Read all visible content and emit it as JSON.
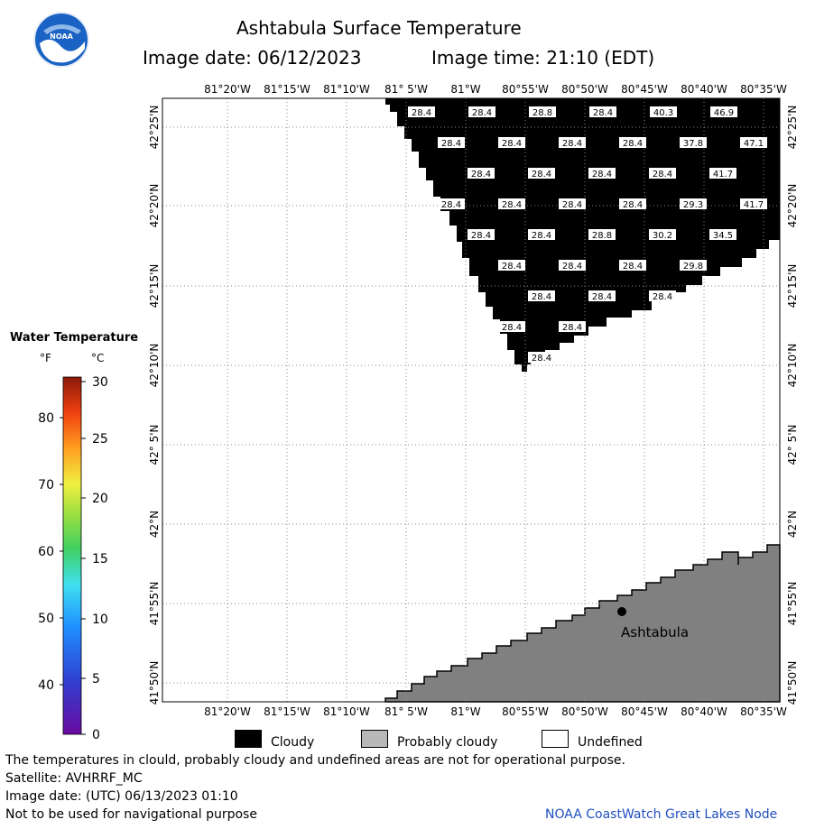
{
  "header": {
    "title": "Ashtabula Surface Temperature",
    "image_date_label": "Image date: 06/12/2023",
    "image_time_label": "Image time: 21:10 (EDT)"
  },
  "logo": {
    "text": "NOAA",
    "icon": "noaa-logo"
  },
  "map": {
    "lon_labels": [
      "81°20'W",
      "81°15'W",
      "81°10'W",
      "81° 5'W",
      "81°W",
      "80°55'W",
      "80°50'W",
      "80°45'W",
      "80°40'W",
      "80°35'W"
    ],
    "lat_labels": [
      "42°25'N",
      "42°20'N",
      "42°15'N",
      "42°10'N",
      "42° 5'N",
      "42°N",
      "41°55'N",
      "41°50'N"
    ],
    "city": "Ashtabula",
    "colors": {
      "cloudy": "#000000",
      "probably_cloudy": "#808080",
      "undefined": "#ffffff"
    },
    "temperature_labels": [
      {
        "row": 0,
        "col": 0,
        "v": "28.4"
      },
      {
        "row": 0,
        "col": 1,
        "v": "28.4"
      },
      {
        "row": 0,
        "col": 2,
        "v": "28.8"
      },
      {
        "row": 0,
        "col": 3,
        "v": "28.4"
      },
      {
        "row": 0,
        "col": 4,
        "v": "40.3"
      },
      {
        "row": 0,
        "col": 5,
        "v": "46.9"
      },
      {
        "row": 1,
        "col": 0,
        "v": "28.4"
      },
      {
        "row": 1,
        "col": 1,
        "v": "28.4"
      },
      {
        "row": 1,
        "col": 2,
        "v": "28.4"
      },
      {
        "row": 1,
        "col": 3,
        "v": "28.4"
      },
      {
        "row": 1,
        "col": 4,
        "v": "37.8"
      },
      {
        "row": 1,
        "col": 5,
        "v": "47.1"
      },
      {
        "row": 2,
        "col": 0,
        "v": "28.4"
      },
      {
        "row": 2,
        "col": 1,
        "v": "28.4"
      },
      {
        "row": 2,
        "col": 2,
        "v": "28.4"
      },
      {
        "row": 2,
        "col": 3,
        "v": "28.4"
      },
      {
        "row": 2,
        "col": 4,
        "v": "41.7"
      },
      {
        "row": 3,
        "col": 0,
        "v": "28.4"
      },
      {
        "row": 3,
        "col": 1,
        "v": "28.4"
      },
      {
        "row": 3,
        "col": 2,
        "v": "28.4"
      },
      {
        "row": 3,
        "col": 3,
        "v": "28.4"
      },
      {
        "row": 3,
        "col": 4,
        "v": "29.3"
      },
      {
        "row": 3,
        "col": 5,
        "v": "41.7"
      },
      {
        "row": 4,
        "col": 0,
        "v": "28.4"
      },
      {
        "row": 4,
        "col": 1,
        "v": "28.4"
      },
      {
        "row": 4,
        "col": 2,
        "v": "28.8"
      },
      {
        "row": 4,
        "col": 3,
        "v": "30.2"
      },
      {
        "row": 4,
        "col": 4,
        "v": "34.5"
      },
      {
        "row": 5,
        "col": 0,
        "v": "28.4"
      },
      {
        "row": 5,
        "col": 1,
        "v": "28.4"
      },
      {
        "row": 5,
        "col": 2,
        "v": "28.4"
      },
      {
        "row": 5,
        "col": 3,
        "v": "29.8"
      },
      {
        "row": 6,
        "col": 0,
        "v": "28.4"
      },
      {
        "row": 6,
        "col": 1,
        "v": "28.4"
      },
      {
        "row": 6,
        "col": 2,
        "v": "28.4"
      },
      {
        "row": 7,
        "col": 0,
        "v": "28.4"
      },
      {
        "row": 7,
        "col": 1,
        "v": "28.4"
      },
      {
        "row": 8,
        "col": 0,
        "v": "28.4"
      }
    ]
  },
  "legend": {
    "title": "Water Temperature",
    "unit_f": "°F",
    "unit_c": "°C",
    "f_ticks": [
      "80",
      "70",
      "60",
      "50",
      "40"
    ],
    "c_ticks": [
      "30",
      "25",
      "20",
      "15",
      "10",
      "5",
      "0"
    ]
  },
  "key": {
    "cloudy": "Cloudy",
    "probably_cloudy": "Probably cloudy",
    "undefined": "Undefined"
  },
  "footer": {
    "line1": "The temperatures in clould, probably cloudy and undefined areas are not for operational purpose.",
    "line2": "Satellite: AVHRRF_MC",
    "line3": "Image date: (UTC) 06/13/2023  01:10",
    "line4": "Not to be used for navigational purpose",
    "credit": "NOAA CoastWatch Great Lakes Node"
  }
}
